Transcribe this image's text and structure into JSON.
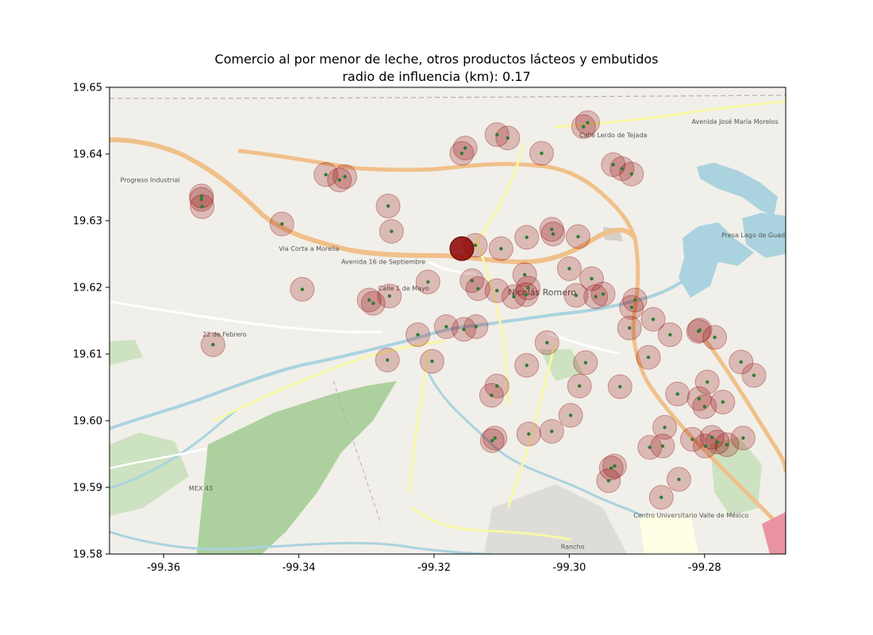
{
  "chart_data": {
    "type": "scatter",
    "title": "Comercio al por menor de leche, otros productos lácteos y embutidos",
    "subtitle": "radio de influencia (km): 0.17",
    "xlabel": "",
    "ylabel": "",
    "xlim": [
      -99.368,
      -99.268
    ],
    "ylim": [
      19.58,
      19.65
    ],
    "xticks": [
      "-99.36",
      "-99.34",
      "-99.32",
      "-99.30",
      "-99.28"
    ],
    "xtick_values": [
      -99.36,
      -99.34,
      -99.32,
      -99.3,
      -99.28
    ],
    "yticks": [
      "19.58",
      "19.59",
      "19.60",
      "19.61",
      "19.62",
      "19.63",
      "19.64",
      "19.65"
    ],
    "ytick_values": [
      19.58,
      19.59,
      19.6,
      19.61,
      19.62,
      19.63,
      19.64,
      19.65
    ],
    "grid": false,
    "basemap_labels": [
      {
        "text": "Progreso Industrial",
        "x": -99.362,
        "y": 19.6358
      },
      {
        "text": "Nicolás Romero",
        "x": -99.304,
        "y": 19.6188
      },
      {
        "text": "22 de Febrero",
        "x": -99.351,
        "y": 19.6126
      },
      {
        "text": "Presa Lago de Guadalupe",
        "x": -99.2715,
        "y": 19.6275
      },
      {
        "text": "Centro Universitario Valle de México",
        "x": -99.282,
        "y": 19.5855
      },
      {
        "text": "Rancho",
        "x": -99.2995,
        "y": 19.5808
      },
      {
        "text": "MEX 43",
        "x": -99.3545,
        "y": 19.5895
      },
      {
        "text": "Via Corta a Morelia",
        "x": -99.3385,
        "y": 19.6255
      },
      {
        "text": "Avenida 16 de Septiembre",
        "x": -99.3275,
        "y": 19.6235
      },
      {
        "text": "Calle 1 de Mayo",
        "x": -99.3245,
        "y": 19.6195
      },
      {
        "text": "Calle Lerdo de Tejada",
        "x": -99.2935,
        "y": 19.6425
      },
      {
        "text": "Avenida José María Morelos",
        "x": -99.2755,
        "y": 19.6445
      }
    ],
    "marker_color": "#8b0000",
    "center_color": "#2e7d32",
    "highlight": {
      "x": -99.3159,
      "y": 19.6258
    },
    "points": [
      {
        "x": -99.3154,
        "y": 19.6409
      },
      {
        "x": -99.3159,
        "y": 19.6401
      },
      {
        "x": -99.3091,
        "y": 19.6424
      },
      {
        "x": -99.3107,
        "y": 19.6429
      },
      {
        "x": -99.2979,
        "y": 19.6441
      },
      {
        "x": -99.2973,
        "y": 19.6447
      },
      {
        "x": -99.3041,
        "y": 19.6401
      },
      {
        "x": -99.336,
        "y": 19.6369
      },
      {
        "x": -99.334,
        "y": 19.6361
      },
      {
        "x": -99.3332,
        "y": 19.6366
      },
      {
        "x": -99.3544,
        "y": 19.6337
      },
      {
        "x": -99.3544,
        "y": 19.6332
      },
      {
        "x": -99.3543,
        "y": 19.6321
      },
      {
        "x": -99.3268,
        "y": 19.6322
      },
      {
        "x": -99.3263,
        "y": 19.6284
      },
      {
        "x": -99.3425,
        "y": 19.6295
      },
      {
        "x": -99.2935,
        "y": 19.6384
      },
      {
        "x": -99.2922,
        "y": 19.6378
      },
      {
        "x": -99.2908,
        "y": 19.637
      },
      {
        "x": -99.3139,
        "y": 19.6263
      },
      {
        "x": -99.3101,
        "y": 19.6258
      },
      {
        "x": -99.3063,
        "y": 19.6275
      },
      {
        "x": -99.3026,
        "y": 19.6287
      },
      {
        "x": -99.3024,
        "y": 19.628
      },
      {
        "x": -99.2987,
        "y": 19.6276
      },
      {
        "x": -99.3,
        "y": 19.6228
      },
      {
        "x": -99.2967,
        "y": 19.6213
      },
      {
        "x": -99.3066,
        "y": 19.6219
      },
      {
        "x": -99.3061,
        "y": 19.6199
      },
      {
        "x": -99.3064,
        "y": 19.6189
      },
      {
        "x": -99.3082,
        "y": 19.6186
      },
      {
        "x": -99.3107,
        "y": 19.6195
      },
      {
        "x": -99.3135,
        "y": 19.6198
      },
      {
        "x": -99.3144,
        "y": 19.621
      },
      {
        "x": -99.3209,
        "y": 19.6208
      },
      {
        "x": -99.299,
        "y": 19.6188
      },
      {
        "x": -99.2961,
        "y": 19.6186
      },
      {
        "x": -99.295,
        "y": 19.619
      },
      {
        "x": -99.2903,
        "y": 19.6181
      },
      {
        "x": -99.2908,
        "y": 19.617
      },
      {
        "x": -99.2876,
        "y": 19.6152
      },
      {
        "x": -99.2911,
        "y": 19.6139
      },
      {
        "x": -99.2851,
        "y": 19.6129
      },
      {
        "x": -99.2807,
        "y": 19.6136
      },
      {
        "x": -99.2809,
        "y": 19.6134
      },
      {
        "x": -99.2785,
        "y": 19.6125
      },
      {
        "x": -99.3395,
        "y": 19.6197
      },
      {
        "x": -99.3296,
        "y": 19.6181
      },
      {
        "x": -99.329,
        "y": 19.6176
      },
      {
        "x": -99.3266,
        "y": 19.6187
      },
      {
        "x": -99.3182,
        "y": 19.6141
      },
      {
        "x": -99.3156,
        "y": 19.6137
      },
      {
        "x": -99.3138,
        "y": 19.6141
      },
      {
        "x": -99.3224,
        "y": 19.6129
      },
      {
        "x": -99.3033,
        "y": 19.6117
      },
      {
        "x": -99.3527,
        "y": 19.6114
      },
      {
        "x": -99.3269,
        "y": 19.6091
      },
      {
        "x": -99.3203,
        "y": 19.6089
      },
      {
        "x": -99.3063,
        "y": 19.6083
      },
      {
        "x": -99.2976,
        "y": 19.6087
      },
      {
        "x": -99.2883,
        "y": 19.6095
      },
      {
        "x": -99.2746,
        "y": 19.6088
      },
      {
        "x": -99.2727,
        "y": 19.6068
      },
      {
        "x": -99.2796,
        "y": 19.6058
      },
      {
        "x": -99.284,
        "y": 19.604
      },
      {
        "x": -99.2808,
        "y": 19.6033
      },
      {
        "x": -99.28,
        "y": 19.6021
      },
      {
        "x": -99.2773,
        "y": 19.6028
      },
      {
        "x": -99.3107,
        "y": 19.6052
      },
      {
        "x": -99.3115,
        "y": 19.6038
      },
      {
        "x": -99.2985,
        "y": 19.6052
      },
      {
        "x": -99.2925,
        "y": 19.6051
      },
      {
        "x": -99.2998,
        "y": 19.6008
      },
      {
        "x": -99.2859,
        "y": 19.599
      },
      {
        "x": -99.3026,
        "y": 19.5984
      },
      {
        "x": -99.306,
        "y": 19.598
      },
      {
        "x": -99.311,
        "y": 19.5974
      },
      {
        "x": -99.3114,
        "y": 19.597
      },
      {
        "x": -99.2818,
        "y": 19.5972
      },
      {
        "x": -99.2789,
        "y": 19.5975
      },
      {
        "x": -99.2781,
        "y": 19.5968
      },
      {
        "x": -99.2799,
        "y": 19.5962
      },
      {
        "x": -99.2767,
        "y": 19.5964
      },
      {
        "x": -99.2743,
        "y": 19.5974
      },
      {
        "x": -99.2881,
        "y": 19.596
      },
      {
        "x": -99.2862,
        "y": 19.5962
      },
      {
        "x": -99.2933,
        "y": 19.5932
      },
      {
        "x": -99.2938,
        "y": 19.5929
      },
      {
        "x": -99.2942,
        "y": 19.591
      },
      {
        "x": -99.2838,
        "y": 19.5912
      },
      {
        "x": -99.2864,
        "y": 19.5885
      }
    ]
  }
}
